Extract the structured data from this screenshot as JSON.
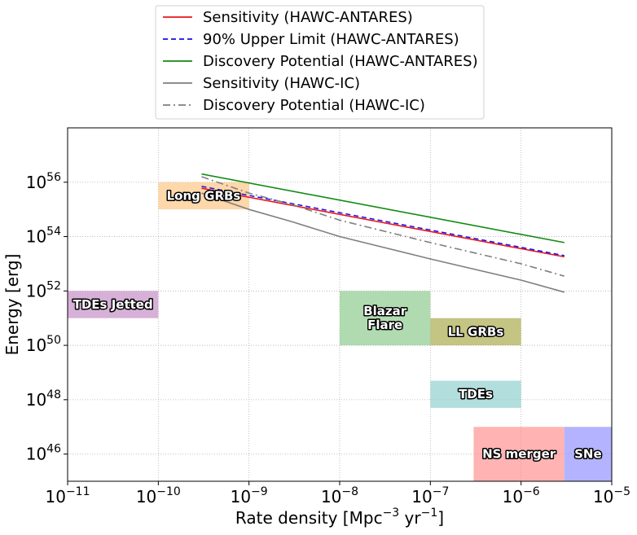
{
  "chart_data": {
    "type": "line",
    "title": "",
    "xlabel": {
      "main": "Rate density [Mpc",
      "exp1": "−3",
      "mid": " yr",
      "exp2": "−1",
      "end": "]"
    },
    "ylabel": "Energy [erg]",
    "xscale": "log",
    "yscale": "log",
    "xlim": [
      1e-11,
      1e-05
    ],
    "ylim": [
      1e+45,
      1e+58
    ],
    "grid": true,
    "legend_position": "top-center-outside",
    "x_ticks": [
      {
        "value": 1e-11,
        "base": "10",
        "exp": "−11"
      },
      {
        "value": 1e-10,
        "base": "10",
        "exp": "−10"
      },
      {
        "value": 1e-09,
        "base": "10",
        "exp": "−9"
      },
      {
        "value": 1e-08,
        "base": "10",
        "exp": "−8"
      },
      {
        "value": 1e-07,
        "base": "10",
        "exp": "−7"
      },
      {
        "value": 1e-06,
        "base": "10",
        "exp": "−6"
      },
      {
        "value": 1e-05,
        "base": "10",
        "exp": "−5"
      }
    ],
    "y_ticks": [
      {
        "value": 1e+46,
        "base": "10",
        "exp": "46"
      },
      {
        "value": 1e+48,
        "base": "10",
        "exp": "48"
      },
      {
        "value": 1e+50,
        "base": "10",
        "exp": "50"
      },
      {
        "value": 1e+52,
        "base": "10",
        "exp": "52"
      },
      {
        "value": 1e+54,
        "base": "10",
        "exp": "54"
      },
      {
        "value": 1e+56,
        "base": "10",
        "exp": "56"
      }
    ],
    "series": [
      {
        "name": "Sensitivity (HAWC-ANTARES)",
        "color": "#e8141c",
        "dash": "solid",
        "x": [
          3e-10,
          3e-06
        ],
        "y": [
          6e+55,
          1.8e+53
        ]
      },
      {
        "name": "90% Upper Limit (HAWC-ANTARES)",
        "color": "#1010ee",
        "dash": "dashed",
        "x": [
          3e-10,
          3e-06
        ],
        "y": [
          7e+55,
          2e+53
        ]
      },
      {
        "name": "Discovery Potential (HAWC-ANTARES)",
        "color": "#138a13",
        "dash": "solid",
        "x": [
          3e-10,
          3e-06
        ],
        "y": [
          2e+56,
          6e+53
        ]
      },
      {
        "name": "Sensitivity (HAWC-IC)",
        "color": "#7f7f7f",
        "dash": "solid",
        "x": [
          3e-10,
          1e-09,
          3e-09,
          1e-08,
          1e-07,
          1e-06,
          3e-06
        ],
        "y": [
          4e+55,
          1e+55,
          3.5e+54,
          1e+54,
          1.5e+53,
          2.5e+52,
          9e+51
        ]
      },
      {
        "name": "Discovery Potential (HAWC-IC)",
        "color": "#7f7f7f",
        "dash": "dashdot",
        "x": [
          3e-10,
          1e-09,
          3e-09,
          1e-08,
          1e-07,
          1e-06,
          3e-06
        ],
        "y": [
          1.6e+56,
          4e+55,
          1.5e+55,
          4e+54,
          6e+53,
          1e+53,
          3.5e+52
        ]
      }
    ],
    "regions": [
      {
        "label": [
          "TDEs Jetted"
        ],
        "color": "#c185c3",
        "x": [
          1e-11,
          1e-10
        ],
        "y": [
          1e+51,
          1e+52
        ]
      },
      {
        "label": [
          "Long GRBs"
        ],
        "color": "#fec17d",
        "x": [
          1e-10,
          1e-09
        ],
        "y": [
          1e+55,
          1e+56
        ]
      },
      {
        "label": [
          "Blazar",
          "Flare"
        ],
        "color": "#86c786",
        "x": [
          1e-08,
          1e-07
        ],
        "y": [
          1e+50,
          1e+52
        ]
      },
      {
        "label": [
          "LL GRBs"
        ],
        "color": "#a5a440",
        "x": [
          1e-07,
          1e-06
        ],
        "y": [
          1e+50,
          1e+51
        ]
      },
      {
        "label": [
          "TDEs"
        ],
        "color": "#88cccb",
        "x": [
          1e-07,
          1e-06
        ],
        "y": [
          5e+47,
          5e+48
        ]
      },
      {
        "label": [
          "NS merger"
        ],
        "color": "#ff8a8a",
        "x": [
          3e-07,
          3e-06
        ],
        "y": [
          1e+45,
          1e+47
        ]
      },
      {
        "label": [
          "SNe"
        ],
        "color": "#8a8aff",
        "x": [
          3e-06,
          1e-05
        ],
        "y": [
          1e+45,
          1e+47
        ]
      }
    ]
  }
}
